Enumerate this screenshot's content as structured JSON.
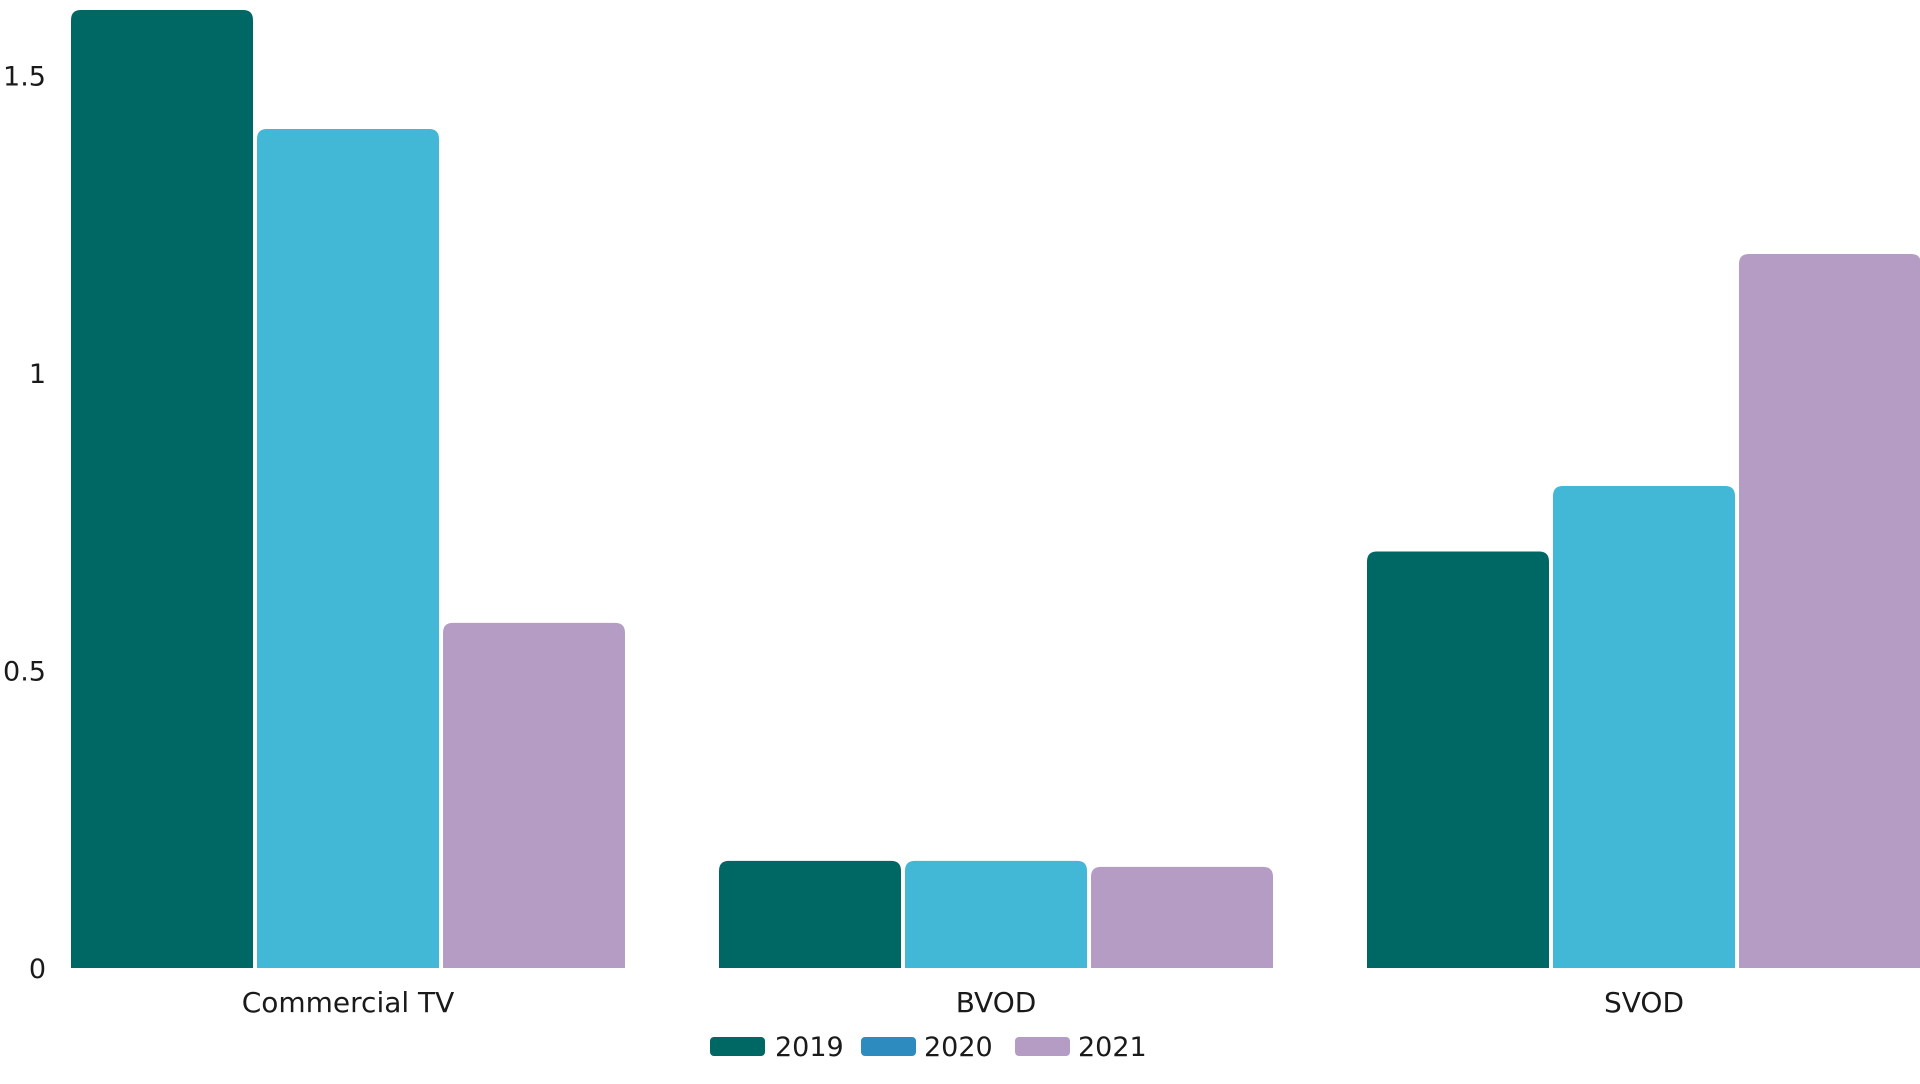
{
  "chart_data": {
    "type": "bar",
    "title": "",
    "xlabel": "",
    "ylabel": "",
    "categories": [
      "Commercial TV",
      "BVOD",
      "SVOD"
    ],
    "series": [
      {
        "name": "2019",
        "values": [
          1.61,
          0.18,
          0.7
        ],
        "color": "#006864"
      },
      {
        "name": "2020",
        "values": [
          1.41,
          0.18,
          0.81
        ],
        "color": "#42b8d6"
      },
      {
        "name": "2021",
        "values": [
          0.58,
          0.17,
          1.2
        ],
        "color": "#b49cc4"
      }
    ],
    "legend_colors": [
      "#006864",
      "#2e8bbf",
      "#b49cc4"
    ],
    "ylim": [
      0,
      1.62
    ],
    "yticks": [
      {
        "value": 0,
        "label": "0"
      },
      {
        "value": 0.5,
        "label": "0.5"
      },
      {
        "value": 1,
        "label": "1"
      },
      {
        "value": 1.5,
        "label": "1.5"
      }
    ],
    "grid": false,
    "legend_position": "bottom-center"
  }
}
